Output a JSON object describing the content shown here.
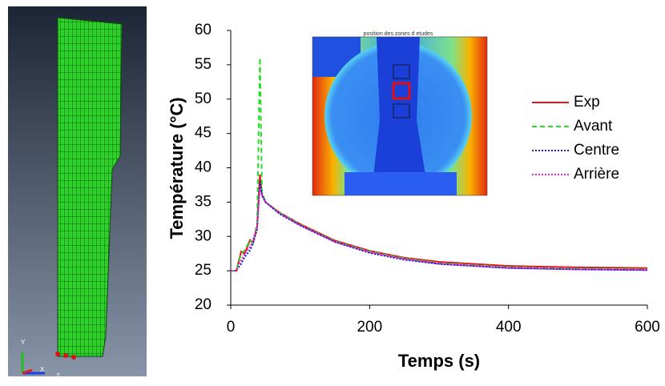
{
  "chart_data": {
    "type": "line",
    "x_label": "Temps (s)",
    "y_label": "Température (°C)",
    "x": [
      0,
      8,
      15,
      20,
      28,
      32,
      38,
      42,
      45,
      50,
      70,
      100,
      150,
      200,
      250,
      300,
      400,
      500,
      600
    ],
    "series": [
      {
        "name": "Exp",
        "color": "#e8141c",
        "style": "solid",
        "values": [
          25,
          25,
          27.8,
          27.5,
          29.5,
          29,
          31.5,
          39,
          36,
          35,
          33.5,
          31.8,
          29.4,
          27.9,
          26.9,
          26.3,
          25.7,
          25.5,
          25.4
        ]
      },
      {
        "name": "Avant",
        "color": "#22dd22",
        "style": "dashed",
        "values": [
          25,
          25,
          27.5,
          28,
          29.5,
          29,
          32,
          56,
          36.5,
          35,
          33.5,
          31.7,
          29.3,
          27.8,
          26.8,
          26.1,
          25.5,
          25.3,
          25.2
        ]
      },
      {
        "name": "Centre",
        "color": "#1a1acc",
        "style": "dotted",
        "values": [
          25,
          25,
          26,
          27,
          28,
          29,
          31,
          38,
          36,
          35,
          33.3,
          31.6,
          29.2,
          27.6,
          26.6,
          26,
          25.4,
          25.2,
          25.1
        ]
      },
      {
        "name": "Arrière",
        "color": "#e020e0",
        "style": "dotted",
        "values": [
          25,
          25,
          26.5,
          27.5,
          28.5,
          29.5,
          31.5,
          37,
          36,
          35,
          33.4,
          31.6,
          29.2,
          27.7,
          26.7,
          26,
          25.4,
          25.2,
          25.1
        ]
      }
    ],
    "xlim": [
      0,
      600
    ],
    "xticks": [
      0,
      200,
      400,
      600
    ],
    "ylim": [
      20,
      60
    ],
    "yticks": [
      20,
      25,
      30,
      35,
      40,
      45,
      50,
      55,
      60
    ],
    "legend": "right"
  },
  "inset": {
    "title": "position des zones d etudes"
  },
  "model_view": {
    "axes": [
      "Y",
      "X",
      "Z"
    ]
  }
}
